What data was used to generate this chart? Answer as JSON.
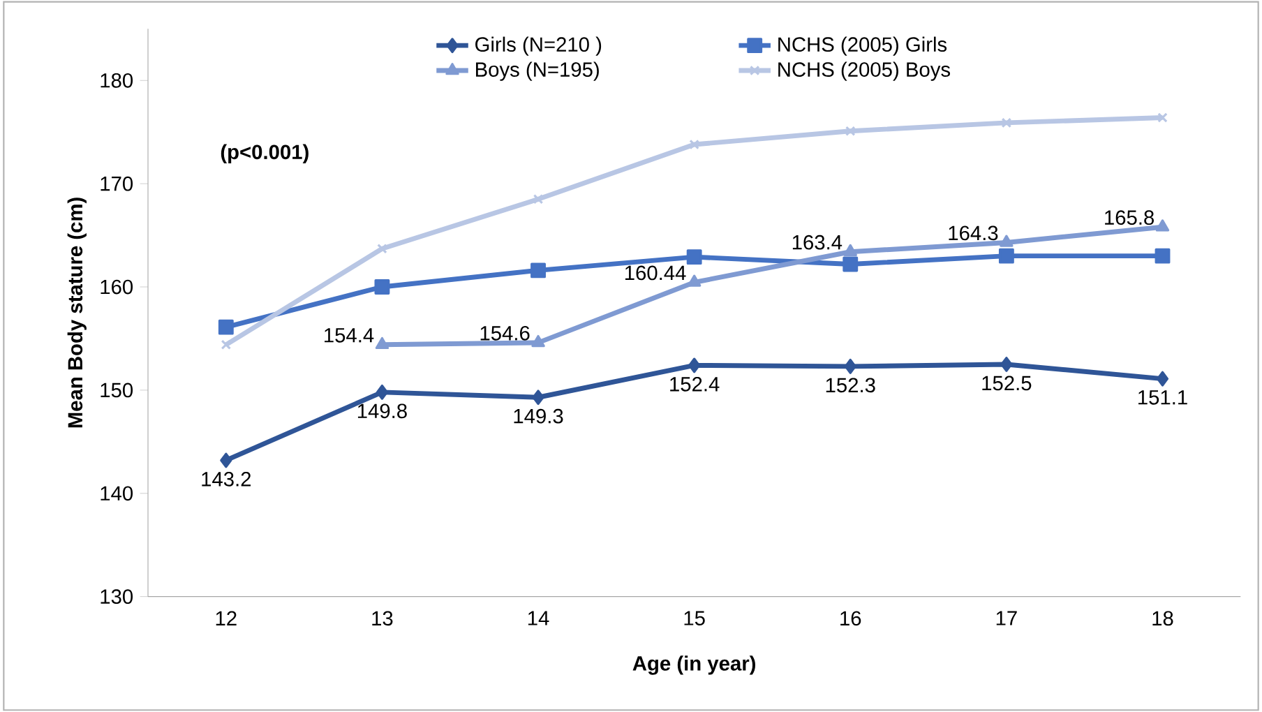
{
  "chart_data": {
    "type": "line",
    "xlabel": "Age (in year)",
    "ylabel": "Mean Body stature (cm)",
    "categories": [
      "12",
      "13",
      "14",
      "15",
      "16",
      "17",
      "18"
    ],
    "ylim": [
      130,
      185
    ],
    "yticks": [
      130,
      140,
      150,
      160,
      170,
      180
    ],
    "grid": false,
    "legend": "top",
    "series": [
      {
        "name": "Girls (N=210 )",
        "color": "#2f5597",
        "marker": "diamond",
        "values": [
          143.2,
          149.8,
          149.3,
          152.4,
          152.3,
          152.5,
          151.1
        ],
        "value_labels": [
          "143.2",
          "149.8",
          "149.3",
          "152.4",
          "152.3",
          "152.5",
          "151.1"
        ]
      },
      {
        "name": "NCHS (2005) Girls",
        "color": "#4472c4",
        "marker": "square",
        "values": [
          156.1,
          160.0,
          161.6,
          162.9,
          162.2,
          163.0,
          163.0
        ]
      },
      {
        "name": "Boys (N=195)",
        "color": "#7f9ad2",
        "marker": "triangle",
        "values": [
          null,
          154.4,
          154.6,
          160.44,
          163.4,
          164.3,
          165.8
        ],
        "value_labels": [
          null,
          "154.4",
          "154.6",
          "160.44",
          "163.4",
          "164.3",
          "165.8"
        ]
      },
      {
        "name": "NCHS (2005) Boys",
        "color": "#b8c6e4",
        "marker": "cross",
        "values": [
          154.4,
          163.7,
          168.5,
          173.8,
          175.1,
          175.9,
          176.4
        ]
      }
    ],
    "annotations": [
      "(p<0.001)"
    ]
  }
}
